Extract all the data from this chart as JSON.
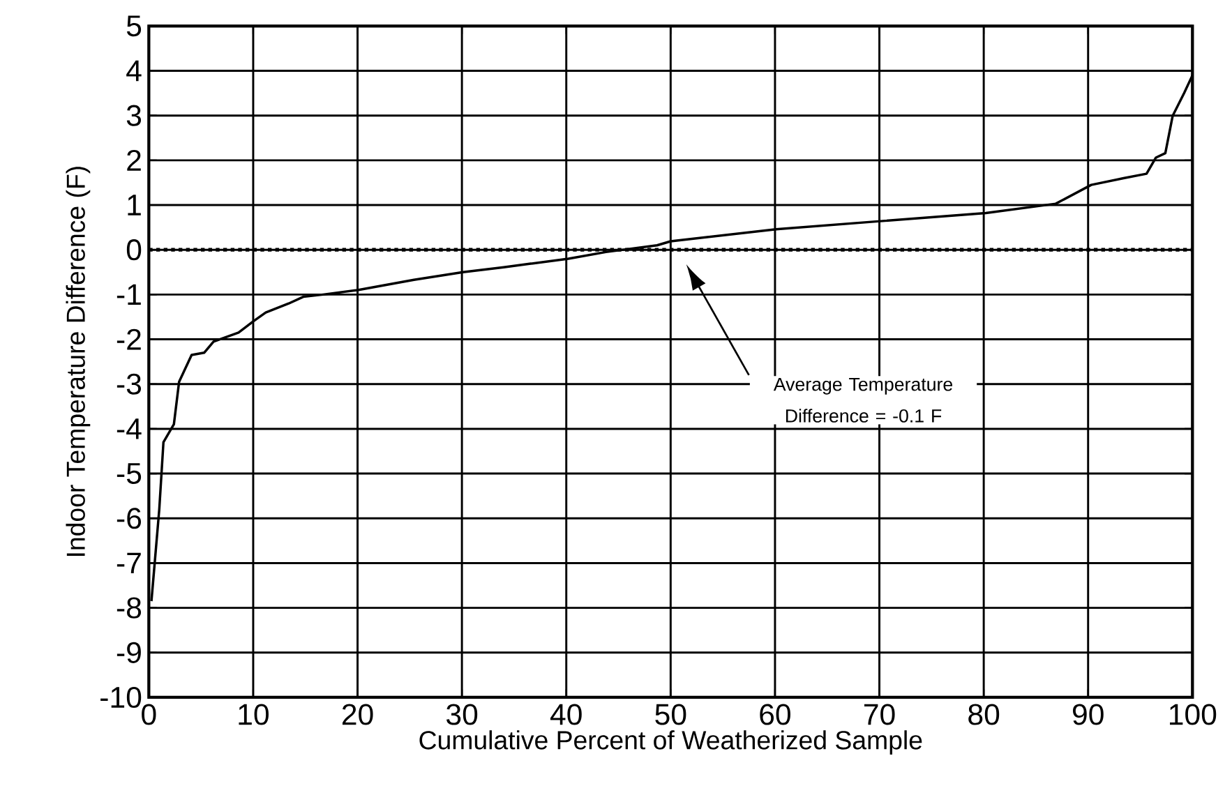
{
  "chart_data": {
    "type": "line",
    "xlabel": "Cumulative Percent of Weatherized Sample",
    "ylabel": "Indoor Temperature Difference (F)",
    "x": [
      0.25,
      1.0,
      1.4,
      2.4,
      2.9,
      4.1,
      5.3,
      6.2,
      8.6,
      10,
      11.2,
      13.4,
      14.8,
      16.7,
      20,
      25.4,
      30.1,
      34,
      36.6,
      40.2,
      43.8,
      48.7,
      50,
      60.1,
      70.1,
      80.2,
      86.9,
      90.3,
      93.4,
      95.6,
      96.5,
      97.4,
      98.1,
      99.2,
      100
    ],
    "series": [
      {
        "color": "#000000",
        "values": [
          -7.85,
          -5.8,
          -4.3,
          -3.9,
          -2.95,
          -2.35,
          -2.3,
          -2.05,
          -1.85,
          -1.6,
          -1.4,
          -1.2,
          -1.05,
          -1.0,
          -0.9,
          -0.67,
          -0.5,
          -0.39,
          -0.31,
          -0.2,
          -0.05,
          0.1,
          0.19,
          0.46,
          0.64,
          0.82,
          1.03,
          1.45,
          1.6,
          1.7,
          2.06,
          2.16,
          2.99,
          3.5,
          3.9
        ]
      }
    ],
    "xlim": [
      0,
      100
    ],
    "xticks": [
      0,
      10,
      20,
      30,
      40,
      50,
      60,
      70,
      80,
      90,
      100
    ],
    "ylim": [
      -10,
      5
    ],
    "yticks": [
      -10,
      -9,
      -8,
      -7,
      -6,
      -5,
      -4,
      -3,
      -2,
      -1,
      0,
      1,
      2,
      3,
      4,
      5
    ],
    "grid": true,
    "marker": "none",
    "line_style": "solid",
    "ref_lines": [
      {
        "axis": "y",
        "value": 0,
        "line_style": "dotted"
      }
    ],
    "annotations": [
      "Average Temperature Difference = -0.1 F"
    ]
  }
}
